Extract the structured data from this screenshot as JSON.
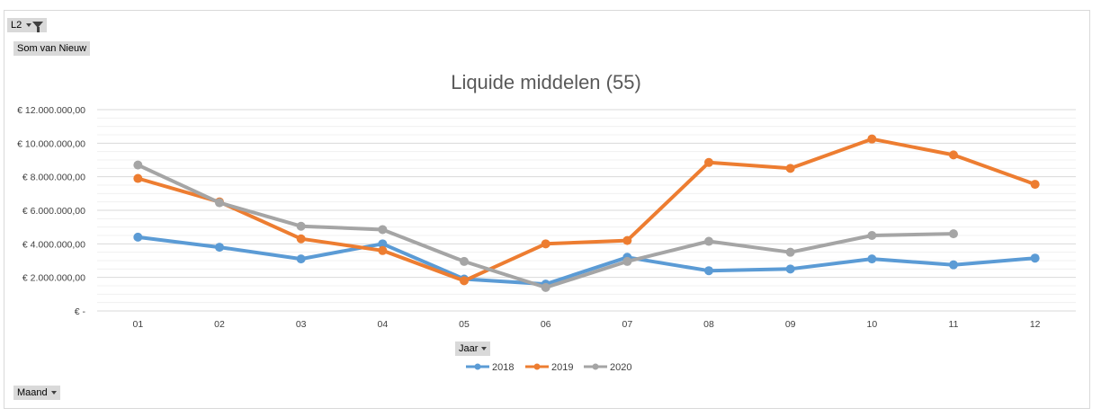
{
  "filter": {
    "label": "L2"
  },
  "value_field": {
    "label": "Som van Nieuw"
  },
  "legend_field": {
    "label": "Jaar"
  },
  "axis_field": {
    "label": "Maand"
  },
  "colors": {
    "2018": "#5b9bd5",
    "2019": "#ed7d31",
    "2020": "#a5a5a5",
    "grid": "#d9d9d9",
    "minor_grid": "#f0f0f0"
  },
  "chart_data": {
    "type": "line",
    "title": "Liquide middelen (55)",
    "xlabel": "",
    "ylabel": "",
    "ylim": [
      0,
      12000000
    ],
    "y_tick_values": [
      0,
      2000000,
      4000000,
      6000000,
      8000000,
      10000000,
      12000000
    ],
    "y_tick_labels": [
      "€ -",
      "€ 2.000.000,00",
      "€ 4.000.000,00",
      "€ 6.000.000,00",
      "€ 8.000.000,00",
      "€ 10.000.000,00",
      "€ 12.000.000,00"
    ],
    "categories": [
      "01",
      "02",
      "03",
      "04",
      "05",
      "06",
      "07",
      "08",
      "09",
      "10",
      "11",
      "12"
    ],
    "grid": true,
    "legend_position": "bottom",
    "series": [
      {
        "name": "2018",
        "values": [
          4400000,
          3800000,
          3100000,
          4000000,
          1900000,
          1600000,
          3200000,
          2400000,
          2500000,
          3100000,
          2750000,
          3150000
        ]
      },
      {
        "name": "2019",
        "values": [
          7900000,
          6500000,
          4300000,
          3600000,
          1800000,
          4000000,
          4200000,
          8850000,
          8500000,
          10250000,
          9300000,
          7550000
        ]
      },
      {
        "name": "2020",
        "values": [
          8700000,
          6450000,
          5050000,
          4850000,
          2950000,
          1400000,
          2950000,
          4150000,
          3500000,
          4500000,
          4600000,
          null
        ]
      }
    ]
  }
}
